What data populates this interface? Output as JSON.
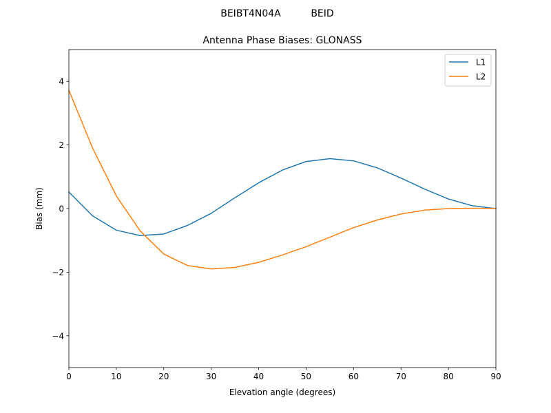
{
  "figure": {
    "suptitle_left": "BEIBT4N04A",
    "suptitle_right": "BEID"
  },
  "chart_data": {
    "type": "line",
    "title": "Antenna Phase Biases: GLONASS",
    "xlabel": "Elevation angle (degrees)",
    "ylabel": "Bias (mm)",
    "xlim": [
      0,
      90
    ],
    "ylim": [
      -5,
      5
    ],
    "xticks": [
      0,
      10,
      20,
      30,
      40,
      50,
      60,
      70,
      80,
      90
    ],
    "yticks": [
      -4,
      -2,
      0,
      2,
      4
    ],
    "grid": false,
    "legend": "top-right",
    "x": [
      0,
      5,
      10,
      15,
      20,
      25,
      30,
      35,
      40,
      45,
      50,
      55,
      60,
      65,
      70,
      75,
      80,
      85,
      90
    ],
    "series": [
      {
        "name": "L1",
        "color": "#1f77b4",
        "values": [
          0.52,
          -0.23,
          -0.68,
          -0.85,
          -0.8,
          -0.53,
          -0.15,
          0.34,
          0.81,
          1.21,
          1.48,
          1.57,
          1.5,
          1.28,
          0.96,
          0.61,
          0.3,
          0.09,
          0.0
        ]
      },
      {
        "name": "L2",
        "color": "#ff7f0e",
        "values": [
          3.72,
          1.9,
          0.4,
          -0.7,
          -1.43,
          -1.79,
          -1.9,
          -1.85,
          -1.69,
          -1.46,
          -1.2,
          -0.9,
          -0.6,
          -0.36,
          -0.17,
          -0.05,
          0.0,
          0.01,
          0.0
        ]
      }
    ]
  }
}
